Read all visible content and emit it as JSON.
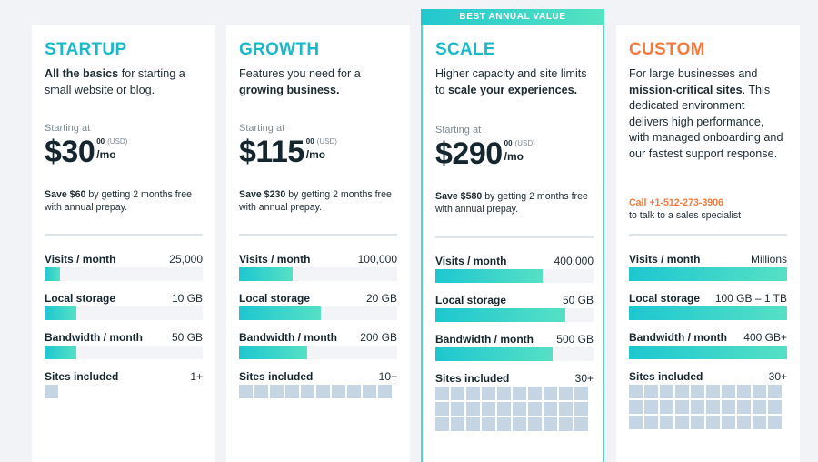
{
  "plans": [
    {
      "name": "STARTUP",
      "color": "#19b9c9",
      "desc_parts": [
        {
          "text": "All the basics",
          "bold": true
        },
        {
          "text": " for starting a small website or blog.",
          "bold": false
        }
      ],
      "starting_label": "Starting at",
      "price": "$30",
      "cents": "00",
      "currency": "(USD)",
      "period": "/mo",
      "save_bold": "Save $60",
      "save_rest": " by getting 2 months free with annual prepay.",
      "stats": [
        {
          "label": "Visits / month",
          "value": "25,000",
          "fill": 0.1
        },
        {
          "label": "Local storage",
          "value": "10 GB",
          "fill": 0.2
        },
        {
          "label": "Bandwidth / month",
          "value": "50 GB",
          "fill": 0.2
        }
      ],
      "sites_label": "Sites included",
      "sites_value": "1+",
      "sites_count": 1
    },
    {
      "name": "GROWTH",
      "color": "#19b9c9",
      "desc_parts": [
        {
          "text": "Features you need for a ",
          "bold": false
        },
        {
          "text": "growing business.",
          "bold": true
        }
      ],
      "starting_label": "Starting at",
      "price": "$115",
      "cents": "00",
      "currency": "(USD)",
      "period": "/mo",
      "save_bold": "Save $230",
      "save_rest": " by getting 2 months free with annual prepay.",
      "stats": [
        {
          "label": "Visits / month",
          "value": "100,000",
          "fill": 0.34
        },
        {
          "label": "Local storage",
          "value": "20 GB",
          "fill": 0.52
        },
        {
          "label": "Bandwidth / month",
          "value": "200 GB",
          "fill": 0.43
        }
      ],
      "sites_label": "Sites included",
      "sites_value": "10+",
      "sites_count": 10
    },
    {
      "name": "SCALE",
      "color": "#19b9c9",
      "ribbon": "BEST ANNUAL VALUE",
      "desc_parts": [
        {
          "text": "Higher capacity and site limits to ",
          "bold": false
        },
        {
          "text": "scale your experiences.",
          "bold": true
        }
      ],
      "starting_label": "Starting at",
      "price": "$290",
      "cents": "00",
      "currency": "(USD)",
      "period": "/mo",
      "save_bold": "Save $580",
      "save_rest": " by getting 2 months free with annual prepay.",
      "stats": [
        {
          "label": "Visits / month",
          "value": "400,000",
          "fill": 0.68
        },
        {
          "label": "Local storage",
          "value": "50 GB",
          "fill": 0.82
        },
        {
          "label": "Bandwidth / month",
          "value": "500 GB",
          "fill": 0.74
        }
      ],
      "sites_label": "Sites included",
      "sites_value": "30+",
      "sites_count": 30
    },
    {
      "name": "CUSTOM",
      "color": "#f47a3c",
      "desc_parts": [
        {
          "text": "For large businesses and ",
          "bold": false
        },
        {
          "text": "mission-critical sites",
          "bold": true
        },
        {
          "text": ". This dedicated environment delivers high performance, with managed onboarding and our fastest support response.",
          "bold": false
        }
      ],
      "call_phone": "Call +1-512-273-3906",
      "call_sub": "to talk to a sales specialist",
      "stats": [
        {
          "label": "Visits / month",
          "value": "Millions",
          "fill": 1.0
        },
        {
          "label": "Local storage",
          "value": "100 GB – 1 TB",
          "fill": 1.0
        },
        {
          "label": "Bandwidth / month",
          "value": "400 GB+",
          "fill": 1.0
        }
      ],
      "sites_label": "Sites included",
      "sites_value": "30+",
      "sites_count": 30
    }
  ]
}
